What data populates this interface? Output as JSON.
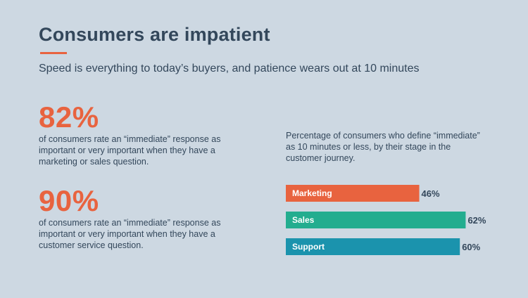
{
  "header": {
    "title": "Consumers are impatient",
    "subtitle": "Speed is everything to today’s buyers, and patience wears out at 10 minutes"
  },
  "stats": [
    {
      "value": "82%",
      "description": "of consumers rate an “immediate” response as important or very important when they have a marketing or sales question."
    },
    {
      "value": "90%",
      "description": "of consumers rate an “immediate” response as important or very important when they have a customer service question."
    }
  ],
  "colors": {
    "background": "#cdd8e2",
    "accent": "#e8633f",
    "text": "#33475b",
    "marketing": "#e8633f",
    "sales": "#23ad8f",
    "support": "#1b93ad"
  },
  "chart_data": {
    "type": "bar",
    "orientation": "horizontal",
    "title": "Percentage of consumers who define “immediate” as 10 minutes or less, by their stage in the customer journey.",
    "categories": [
      "Marketing",
      "Sales",
      "Support"
    ],
    "values": [
      46,
      62,
      60
    ],
    "value_labels": [
      "46%",
      "62%",
      "60%"
    ],
    "unit": "%",
    "xlim": [
      0,
      100
    ],
    "bar_colors": [
      "#e8633f",
      "#23ad8f",
      "#1b93ad"
    ],
    "grid": false,
    "legend": "none"
  }
}
